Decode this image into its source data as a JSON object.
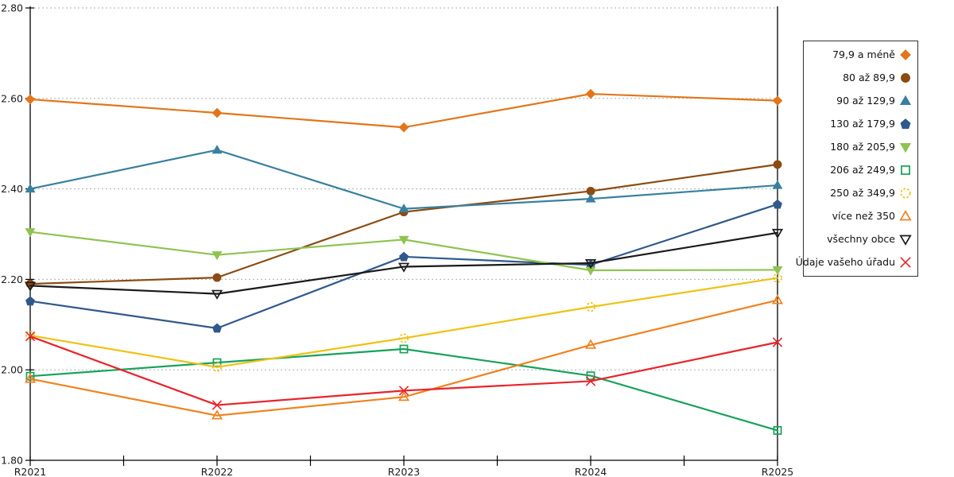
{
  "chart_data": {
    "type": "line",
    "title": "",
    "xlabel": "",
    "ylabel": "",
    "categories": [
      "R2021",
      "R2022",
      "R2023",
      "R2024",
      "R2025"
    ],
    "ylim": [
      1.8,
      2.8
    ],
    "ytick_step": 0.2,
    "ytick_labels": [
      "2.80",
      "2.60",
      "2.40",
      "2.20",
      "2.00",
      "1.80"
    ],
    "grid": "horizontal-dotted",
    "gridline_color": "#b0b0b0",
    "axis_color": "#000000",
    "legend_position": "right-outside",
    "legend_border_color": "#333333",
    "series": [
      {
        "name": "79,9 a méně",
        "color": "#e2761b",
        "marker": "diamond",
        "marker_fill": "filled",
        "values": [
          2.598,
          2.568,
          2.536,
          2.61,
          2.595
        ]
      },
      {
        "name": "80 až 89,9",
        "color": "#8c4b11",
        "marker": "circle",
        "marker_fill": "filled",
        "values": [
          2.19,
          2.204,
          2.349,
          2.395,
          2.454
        ]
      },
      {
        "name": "90 až 129,9",
        "color": "#38809f",
        "marker": "triangle-up",
        "marker_fill": "filled",
        "values": [
          2.4,
          2.486,
          2.356,
          2.378,
          2.408
        ]
      },
      {
        "name": "130 až 179,9",
        "color": "#30588c",
        "marker": "pentagon",
        "marker_fill": "filled",
        "values": [
          2.152,
          2.092,
          2.25,
          2.232,
          2.366
        ]
      },
      {
        "name": "180 až 205,9",
        "color": "#8fc351",
        "marker": "triangle-down",
        "marker_fill": "filled",
        "values": [
          2.305,
          2.254,
          2.288,
          2.22,
          2.221
        ]
      },
      {
        "name": "206 až 249,9",
        "color": "#16a259",
        "marker": "square",
        "marker_fill": "open",
        "values": [
          1.986,
          2.016,
          2.046,
          1.987,
          1.866
        ]
      },
      {
        "name": "250 až 349,9",
        "color": "#efc214",
        "marker": "circle-dashed",
        "marker_fill": "open",
        "values": [
          2.076,
          2.006,
          2.07,
          2.139,
          2.203
        ]
      },
      {
        "name": "více než 350",
        "color": "#f0821e",
        "marker": "triangle-up",
        "marker_fill": "open",
        "values": [
          1.98,
          1.899,
          1.94,
          2.055,
          2.154
        ]
      },
      {
        "name": "všechny obce",
        "color": "#1a1a1a",
        "marker": "triangle-down",
        "marker_fill": "open",
        "values": [
          2.186,
          2.168,
          2.228,
          2.236,
          2.303
        ]
      },
      {
        "name": "Údaje vašeho úřadu",
        "color": "#e8242b",
        "marker": "x",
        "marker_fill": "open",
        "values": [
          2.074,
          1.922,
          1.954,
          1.975,
          2.061
        ]
      }
    ]
  }
}
